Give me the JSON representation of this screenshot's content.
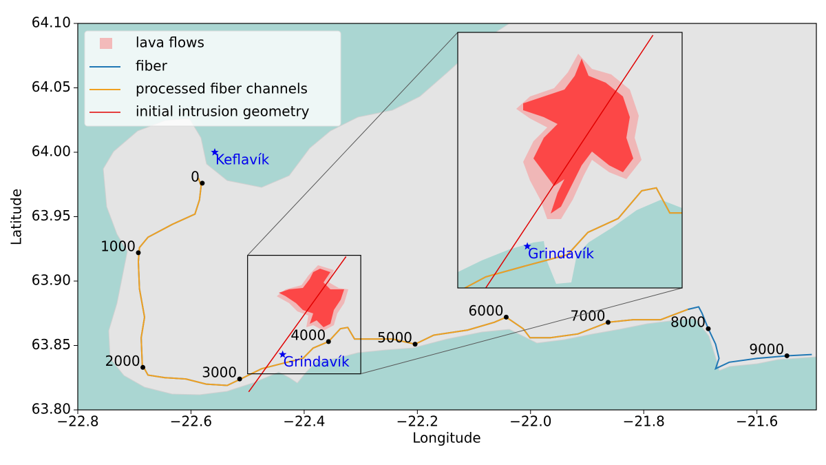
{
  "chart_data": {
    "type": "map",
    "xlabel": "Longitude",
    "ylabel": "Latitude",
    "xlim": [
      -22.8,
      -21.495
    ],
    "ylim": [
      63.8,
      64.1
    ],
    "xticks": [
      {
        "value": -22.8,
        "label": "−22.8"
      },
      {
        "value": -22.6,
        "label": "−22.6"
      },
      {
        "value": -22.4,
        "label": "−22.4"
      },
      {
        "value": -22.2,
        "label": "−22.2"
      },
      {
        "value": -22.0,
        "label": "−22.0"
      },
      {
        "value": -21.8,
        "label": "−21.8"
      },
      {
        "value": -21.6,
        "label": "−21.6"
      }
    ],
    "yticks": [
      {
        "value": 63.8,
        "label": "63.80"
      },
      63.85,
      {
        "value": 63.9,
        "label": "63.90"
      },
      63.95,
      {
        "value": 64.0,
        "label": "64.00"
      },
      64.05,
      {
        "value": 64.1,
        "label": "64.10"
      }
    ],
    "legend": "upper left",
    "lava": {
      "name": "lava flows",
      "color": "#ff3030"
    },
    "series": [
      {
        "name": "fiber",
        "color": "#1f77b4",
        "x": [
          -22.587,
          -22.582,
          -22.585,
          -22.593,
          -22.633,
          -22.676,
          -22.691,
          -22.693,
          -22.691,
          -22.682,
          -22.688,
          -22.686,
          -22.676,
          -22.646,
          -22.609,
          -22.573,
          -22.536,
          -22.512,
          -22.475,
          -22.439,
          -22.402,
          -22.384,
          -22.357,
          -22.336,
          -22.323,
          -22.311,
          -22.281,
          -22.244,
          -22.204,
          -22.171,
          -22.111,
          -22.064,
          -22.043,
          -22.013,
          -22.001,
          -21.965,
          -21.916,
          -21.863,
          -21.819,
          -21.77,
          -21.722,
          -21.703,
          -21.697,
          -21.686,
          -21.673,
          -21.667,
          -21.673,
          -21.649,
          -21.6,
          -21.547,
          -21.503
        ],
        "y": [
          63.98,
          63.974,
          63.963,
          63.952,
          63.944,
          63.934,
          63.926,
          63.915,
          63.894,
          63.872,
          63.856,
          63.835,
          63.827,
          63.825,
          63.824,
          63.82,
          63.819,
          63.824,
          63.832,
          63.836,
          63.84,
          63.848,
          63.853,
          63.863,
          63.864,
          63.855,
          63.855,
          63.855,
          63.851,
          63.858,
          63.862,
          63.868,
          63.872,
          63.863,
          63.856,
          63.856,
          63.859,
          63.868,
          63.87,
          63.87,
          63.878,
          63.88,
          63.875,
          63.863,
          63.851,
          63.84,
          63.832,
          63.837,
          63.84,
          63.842,
          63.843
        ]
      },
      {
        "name": "processed fiber channels",
        "color": "#f0a020",
        "x": [
          -22.587,
          -22.582,
          -22.585,
          -22.593,
          -22.633,
          -22.676,
          -22.691,
          -22.693,
          -22.691,
          -22.682,
          -22.688,
          -22.686,
          -22.676,
          -22.646,
          -22.609,
          -22.573,
          -22.536,
          -22.512,
          -22.475,
          -22.439,
          -22.402,
          -22.384,
          -22.357,
          -22.336,
          -22.323,
          -22.311,
          -22.281,
          -22.244,
          -22.204,
          -22.171,
          -22.111,
          -22.064,
          -22.043,
          -22.013,
          -22.001,
          -21.965,
          -21.916,
          -21.863,
          -21.819,
          -21.77,
          -21.722
        ],
        "y": [
          63.98,
          63.974,
          63.963,
          63.952,
          63.944,
          63.934,
          63.926,
          63.915,
          63.894,
          63.872,
          63.856,
          63.835,
          63.827,
          63.825,
          63.824,
          63.82,
          63.819,
          63.824,
          63.832,
          63.836,
          63.84,
          63.848,
          63.853,
          63.863,
          63.864,
          63.855,
          63.855,
          63.855,
          63.851,
          63.858,
          63.862,
          63.868,
          63.872,
          63.863,
          63.856,
          63.856,
          63.859,
          63.868,
          63.87,
          63.87,
          63.878
        ]
      },
      {
        "name": "initial intrusion geometry",
        "color": "#e00000",
        "x": [
          -22.498,
          -22.326
        ],
        "y": [
          63.814,
          63.919
        ]
      }
    ],
    "channels": {
      "values": [
        0,
        1000,
        2000,
        3000,
        4000,
        5000,
        6000,
        7000,
        8000,
        9000
      ],
      "x": [
        -22.58,
        -22.693,
        -22.685,
        -22.514,
        -22.357,
        -22.204,
        -22.043,
        -21.863,
        -21.686,
        -21.547
      ],
      "y": [
        63.976,
        63.922,
        63.833,
        63.824,
        63.853,
        63.851,
        63.872,
        63.868,
        63.863,
        63.842
      ],
      "color": "#000000"
    },
    "places": [
      {
        "name": "Keflavík",
        "x": -22.558,
        "y": 64.0,
        "color": "#0000ee"
      },
      {
        "name": "Grindavík",
        "x": -22.438,
        "y": 63.843,
        "color": "#0000ee"
      }
    ],
    "inset": {
      "xlim": [
        -22.5,
        -22.3
      ],
      "ylim": [
        63.828,
        63.92
      ]
    }
  }
}
